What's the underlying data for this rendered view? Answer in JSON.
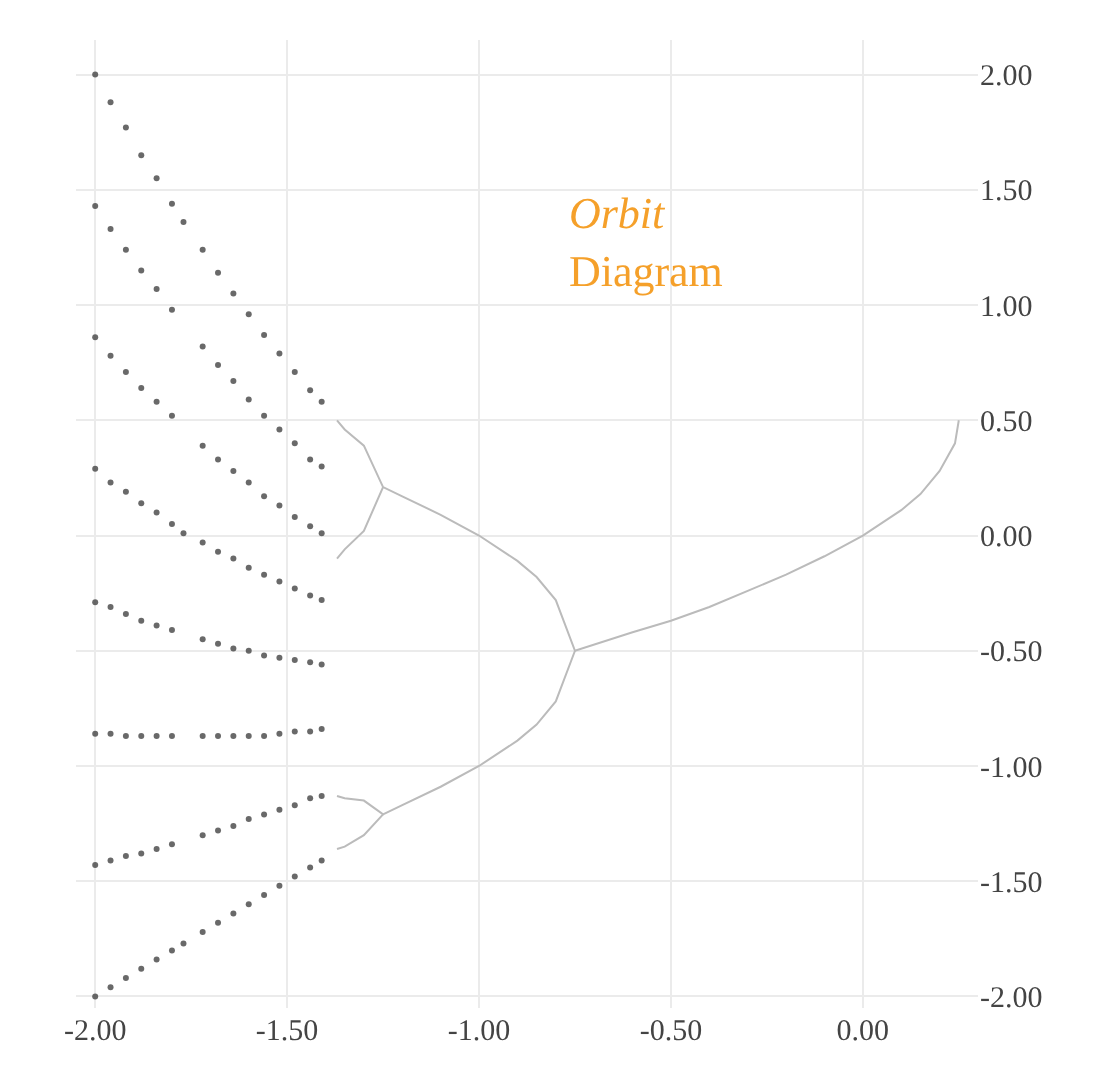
{
  "chart_data": {
    "type": "scatter",
    "title": "Orbit Diagram",
    "xlim": [
      -2.05,
      0.3
    ],
    "xticks": [
      {
        "value": -2,
        "label": "-2.00"
      },
      {
        "value": -1.5,
        "label": "-1.50"
      },
      {
        "value": -1,
        "label": "-1.00"
      },
      {
        "value": -0.5,
        "label": "-0.50"
      },
      {
        "value": 0,
        "label": "0.00"
      }
    ],
    "ylim": [
      -2.05,
      2.15
    ],
    "yticks": [
      {
        "value": -2,
        "label": "-2.00"
      },
      {
        "value": -1.5,
        "label": "-1.50"
      },
      {
        "value": -1,
        "label": "-1.00"
      },
      {
        "value": -0.5,
        "label": "-0.50"
      },
      {
        "value": 0,
        "label": "0.00"
      },
      {
        "value": 0.5,
        "label": "0.50"
      },
      {
        "value": 1,
        "label": "1.00"
      },
      {
        "value": 1.5,
        "label": "1.50"
      },
      {
        "value": 2,
        "label": "2.00"
      }
    ],
    "grid": true,
    "series": [
      {
        "marker": "circle",
        "color": "#444444",
        "x": [
          -2,
          -2,
          -2,
          -2,
          -2,
          -2,
          -2,
          -2,
          -1.96,
          -1.96,
          -1.96,
          -1.96,
          -1.96,
          -1.96,
          -1.96,
          -1.96,
          -1.92,
          -1.92,
          -1.92,
          -1.92,
          -1.92,
          -1.92,
          -1.92,
          -1.92,
          -1.88,
          -1.88,
          -1.88,
          -1.88,
          -1.88,
          -1.88,
          -1.88,
          -1.88,
          -1.84,
          -1.84,
          -1.84,
          -1.84,
          -1.84,
          -1.84,
          -1.84,
          -1.84,
          -1.8,
          -1.8,
          -1.8,
          -1.8,
          -1.8,
          -1.8,
          -1.8,
          -1.8,
          -1.77,
          -1.77,
          -1.77,
          -1.72,
          -1.72,
          -1.72,
          -1.72,
          -1.72,
          -1.72,
          -1.72,
          -1.72,
          -1.68,
          -1.68,
          -1.68,
          -1.68,
          -1.68,
          -1.68,
          -1.68,
          -1.68,
          -1.64,
          -1.64,
          -1.64,
          -1.64,
          -1.64,
          -1.64,
          -1.64,
          -1.64,
          -1.6,
          -1.6,
          -1.6,
          -1.6,
          -1.6,
          -1.6,
          -1.6,
          -1.6,
          -1.56,
          -1.56,
          -1.56,
          -1.56,
          -1.56,
          -1.56,
          -1.56,
          -1.56,
          -1.52,
          -1.52,
          -1.52,
          -1.52,
          -1.52,
          -1.52,
          -1.52,
          -1.52,
          -1.48,
          -1.48,
          -1.48,
          -1.48,
          -1.48,
          -1.48,
          -1.48,
          -1.48,
          -1.44,
          -1.44,
          -1.44,
          -1.44,
          -1.44,
          -1.44,
          -1.44,
          -1.44,
          -1.41,
          -1.41,
          -1.41,
          -1.41,
          -1.41,
          -1.41,
          -1.41,
          -1.41
        ],
        "values": [
          -2,
          -1.43,
          -0.86,
          -0.29,
          0.29,
          0.86,
          1.43,
          2,
          -1.96,
          -1.41,
          -0.86,
          -0.31,
          0.23,
          0.78,
          1.33,
          1.88,
          -1.92,
          -1.39,
          -0.87,
          -0.34,
          0.19,
          0.71,
          1.24,
          1.77,
          -1.88,
          -1.38,
          -0.87,
          -0.37,
          0.14,
          0.64,
          1.15,
          1.65,
          -1.84,
          -1.36,
          -0.87,
          -0.39,
          0.1,
          0.58,
          1.07,
          1.55,
          -1.8,
          -1.34,
          -0.87,
          -0.41,
          0.05,
          0.52,
          0.98,
          1.44,
          -1.77,
          0.01,
          1.36,
          -1.72,
          -1.3,
          -0.87,
          -0.45,
          -0.03,
          0.39,
          0.82,
          1.24,
          -1.68,
          -1.28,
          -0.87,
          -0.47,
          -0.07,
          0.33,
          0.74,
          1.14,
          -1.64,
          -1.26,
          -0.87,
          -0.49,
          -0.1,
          0.28,
          0.67,
          1.05,
          -1.6,
          -1.23,
          -0.87,
          -0.5,
          -0.14,
          0.23,
          0.59,
          0.96,
          -1.56,
          -1.21,
          -0.87,
          -0.52,
          -0.17,
          0.17,
          0.52,
          0.87,
          -1.52,
          -1.19,
          -0.86,
          -0.53,
          -0.2,
          0.13,
          0.46,
          0.79,
          -1.48,
          -1.17,
          -0.85,
          -0.54,
          -0.23,
          0.08,
          0.4,
          0.71,
          -1.44,
          -1.14,
          -0.85,
          -0.55,
          -0.26,
          0.04,
          0.33,
          0.63,
          -1.41,
          -1.13,
          -0.84,
          -0.56,
          -0.28,
          0.01,
          0.3,
          0.58
        ]
      },
      {
        "type": "line",
        "color": "#bbbbbb",
        "x": [
          0.25,
          0.24,
          0.2,
          0.15,
          0.1,
          0,
          -0.1,
          -0.2,
          -0.3,
          -0.4,
          -0.5,
          -0.6,
          -0.75,
          -0.8,
          -0.85,
          -0.9,
          -1,
          -1.1,
          -1.2,
          -1.25,
          -1.3,
          -1.35,
          -1.37,
          null,
          -1.25,
          -1.3,
          -1.35,
          -1.37,
          null,
          -0.75,
          -0.8,
          -0.85,
          -0.9,
          -1,
          -1.1,
          -1.2,
          -1.25,
          -1.3,
          -1.35,
          -1.37,
          null,
          -1.25,
          -1.3,
          -1.35,
          -1.37
        ],
        "values": [
          0.5,
          0.4,
          0.28,
          0.18,
          0.11,
          0,
          -0.09,
          -0.17,
          -0.24,
          -0.31,
          -0.37,
          -0.42,
          -0.5,
          -0.28,
          -0.18,
          -0.11,
          0,
          0.09,
          0.17,
          0.21,
          0.39,
          0.46,
          0.5,
          null,
          0.21,
          0.02,
          -0.06,
          -0.1,
          null,
          -0.5,
          -0.72,
          -0.82,
          -0.89,
          -1,
          -1.09,
          -1.17,
          -1.21,
          -1.15,
          -1.14,
          -1.13,
          null,
          -1.21,
          -1.3,
          -1.35,
          -1.36
        ]
      }
    ]
  }
}
